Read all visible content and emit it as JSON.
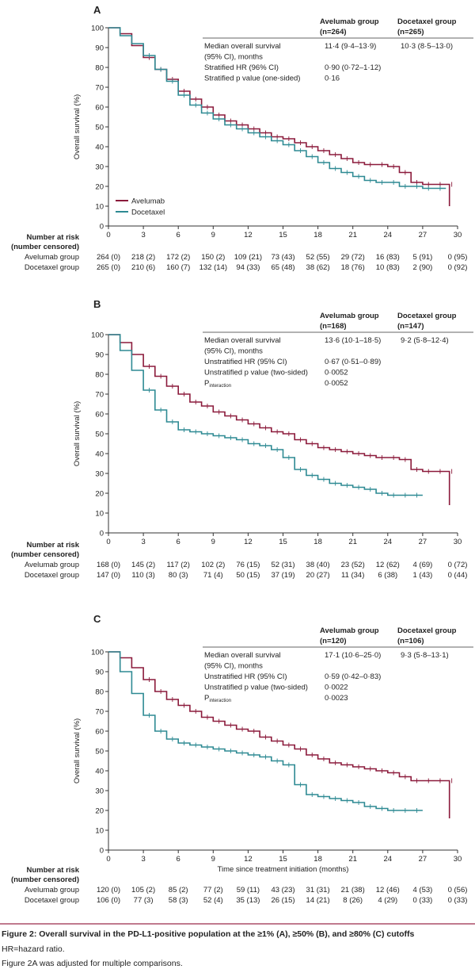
{
  "figure": {
    "caption": "Figure 2: Overall survival in the PD-L1-positive population at the ≥1% (A), ≥50% (B), and ≥80% (C) cutoffs",
    "note1": "HR=hazard ratio.",
    "note2": "Figure 2A was adjusted for multiple comparisons."
  },
  "chart_data": [
    {
      "type": "line",
      "panel": "A",
      "ylabel": "Overall survival (%)",
      "xlabel": "",
      "xlim": [
        0,
        30
      ],
      "ylim": [
        0,
        100
      ],
      "xticks": [
        0,
        3,
        6,
        9,
        12,
        15,
        18,
        21,
        24,
        27,
        30
      ],
      "yticks": [
        0,
        10,
        20,
        30,
        40,
        50,
        60,
        70,
        80,
        90,
        100
      ],
      "legend": [
        "Avelumab",
        "Docetaxel"
      ],
      "colors": {
        "avelumab": "#8b1a3b",
        "docetaxel": "#2e8a93"
      },
      "series": [
        {
          "name": "Avelumab",
          "x": [
            0,
            1,
            2,
            3,
            4,
            5,
            6,
            7,
            8,
            9,
            10,
            11,
            12,
            13,
            14,
            15,
            16,
            17,
            18,
            19,
            20,
            21,
            22,
            23,
            24,
            25,
            26,
            27,
            28,
            29,
            29.3
          ],
          "y": [
            100,
            97,
            91,
            85,
            79,
            74,
            68,
            64,
            60,
            56,
            53,
            51,
            49,
            47,
            45,
            44,
            42,
            40,
            38,
            36,
            34,
            32,
            31,
            31,
            30,
            27,
            22,
            21,
            21,
            21,
            10
          ]
        },
        {
          "name": "Docetaxel",
          "x": [
            0,
            1,
            2,
            3,
            4,
            5,
            6,
            7,
            8,
            9,
            10,
            11,
            12,
            13,
            14,
            15,
            16,
            17,
            18,
            19,
            20,
            21,
            22,
            23,
            24,
            25,
            26,
            27,
            28,
            29
          ],
          "y": [
            100,
            96,
            92,
            86,
            79,
            73,
            66,
            61,
            57,
            54,
            51,
            49,
            47,
            45,
            43,
            41,
            38,
            35,
            32,
            29,
            27,
            25,
            23,
            22,
            22,
            20,
            20,
            19,
            19,
            19
          ]
        }
      ],
      "table": {
        "header_col1": "Avelumab group",
        "header_col1b": "(n=264)",
        "header_col2": "Docetaxel group",
        "header_col2b": "(n=265)",
        "rows": [
          {
            "label": "Median overall survival",
            "av": "11·4 (9·4–13·9)",
            "dc": "10·3 (8·5–13·0)"
          },
          {
            "label": "(95% CI), months",
            "av": "",
            "dc": ""
          },
          {
            "label": "Stratified HR (96% CI)",
            "av": "0·90 (0·72–1·12)",
            "dc": ""
          },
          {
            "label": "Stratified p value (one-sided)",
            "av": "0·16",
            "dc": ""
          }
        ]
      },
      "risk": {
        "title1": "Number at risk",
        "title2": "(number censored)",
        "groups": [
          {
            "label": "Avelumab group",
            "values": [
              "264 (0)",
              "218 (2)",
              "172 (2)",
              "150 (2)",
              "109 (21)",
              "73 (43)",
              "52 (55)",
              "29 (72)",
              "16 (83)",
              "5 (91)",
              "0 (95)"
            ]
          },
          {
            "label": "Docetaxel group",
            "values": [
              "265 (0)",
              "210 (6)",
              "160 (7)",
              "132 (14)",
              "94 (33)",
              "65 (48)",
              "38 (62)",
              "18 (76)",
              "10 (83)",
              "2 (90)",
              "0 (92)"
            ]
          }
        ]
      }
    },
    {
      "type": "line",
      "panel": "B",
      "ylabel": "Overall survival (%)",
      "xlabel": "",
      "xlim": [
        0,
        30
      ],
      "ylim": [
        0,
        100
      ],
      "xticks": [
        0,
        3,
        6,
        9,
        12,
        15,
        18,
        21,
        24,
        27,
        30
      ],
      "yticks": [
        0,
        10,
        20,
        30,
        40,
        50,
        60,
        70,
        80,
        90,
        100
      ],
      "colors": {
        "avelumab": "#8b1a3b",
        "docetaxel": "#2e8a93"
      },
      "series": [
        {
          "name": "Avelumab",
          "x": [
            0,
            1,
            2,
            3,
            4,
            5,
            6,
            7,
            8,
            9,
            10,
            11,
            12,
            13,
            14,
            15,
            16,
            17,
            18,
            19,
            20,
            21,
            22,
            23,
            24,
            25,
            26,
            27,
            28,
            29,
            29.3
          ],
          "y": [
            100,
            96,
            90,
            84,
            79,
            74,
            70,
            66,
            64,
            61,
            59,
            57,
            55,
            53,
            51,
            50,
            47,
            45,
            43,
            42,
            41,
            40,
            39,
            38,
            38,
            37,
            32,
            31,
            31,
            31,
            14
          ]
        },
        {
          "name": "Docetaxel",
          "x": [
            0,
            1,
            2,
            3,
            4,
            5,
            6,
            7,
            8,
            9,
            10,
            11,
            12,
            13,
            14,
            15,
            16,
            17,
            18,
            19,
            20,
            21,
            22,
            23,
            24,
            25,
            26,
            27
          ],
          "y": [
            100,
            92,
            82,
            72,
            62,
            56,
            52,
            51,
            50,
            49,
            48,
            47,
            45,
            44,
            42,
            38,
            32,
            29,
            27,
            25,
            24,
            23,
            22,
            20,
            19,
            19,
            19,
            19
          ]
        }
      ],
      "table": {
        "header_col1": "Avelumab group",
        "header_col1b": "(n=168)",
        "header_col2": "Docetaxel group",
        "header_col2b": "(n=147)",
        "rows": [
          {
            "label": "Median overall survival",
            "av": "13·6 (10·1–18·5)",
            "dc": "9·2 (5·8–12·4)"
          },
          {
            "label": "(95% CI), months",
            "av": "",
            "dc": ""
          },
          {
            "label": "Unstratified HR (95% CI)",
            "av": "0·67 (0·51–0·89)",
            "dc": ""
          },
          {
            "label": "Unstratified p value (two-sided)",
            "av": "0·0052",
            "dc": ""
          },
          {
            "label": "P",
            "sub": "interaction",
            "av": "0·0052",
            "dc": ""
          }
        ]
      },
      "risk": {
        "title1": "Number at risk",
        "title2": "(number censored)",
        "groups": [
          {
            "label": "Avelumab group",
            "values": [
              "168 (0)",
              "145 (2)",
              "117 (2)",
              "102 (2)",
              "76 (15)",
              "52 (31)",
              "38 (40)",
              "23 (52)",
              "12 (62)",
              "4 (69)",
              "0 (72)"
            ]
          },
          {
            "label": "Docetaxel group",
            "values": [
              "147 (0)",
              "110 (3)",
              "80 (3)",
              "71 (4)",
              "50 (15)",
              "37 (19)",
              "20 (27)",
              "11 (34)",
              "6 (38)",
              "1 (43)",
              "0 (44)"
            ]
          }
        ]
      }
    },
    {
      "type": "line",
      "panel": "C",
      "ylabel": "Overall survival (%)",
      "xlabel": "Time since treatment initiation (months)",
      "xlim": [
        0,
        30
      ],
      "ylim": [
        0,
        100
      ],
      "xticks": [
        0,
        3,
        6,
        9,
        12,
        15,
        18,
        21,
        24,
        27,
        30
      ],
      "yticks": [
        0,
        10,
        20,
        30,
        40,
        50,
        60,
        70,
        80,
        90,
        100
      ],
      "colors": {
        "avelumab": "#8b1a3b",
        "docetaxel": "#2e8a93"
      },
      "series": [
        {
          "name": "Avelumab",
          "x": [
            0,
            1,
            2,
            3,
            4,
            5,
            6,
            7,
            8,
            9,
            10,
            11,
            12,
            13,
            14,
            15,
            16,
            17,
            18,
            19,
            20,
            21,
            22,
            23,
            24,
            25,
            26,
            27,
            28,
            29,
            29.3
          ],
          "y": [
            100,
            97,
            92,
            86,
            80,
            76,
            73,
            70,
            67,
            65,
            63,
            61,
            60,
            57,
            55,
            53,
            51,
            48,
            46,
            44,
            43,
            42,
            41,
            40,
            39,
            37,
            35,
            35,
            35,
            35,
            16
          ]
        },
        {
          "name": "Docetaxel",
          "x": [
            0,
            1,
            2,
            3,
            4,
            5,
            6,
            7,
            8,
            9,
            10,
            11,
            12,
            13,
            14,
            15,
            16,
            17,
            18,
            19,
            20,
            21,
            22,
            23,
            24,
            25,
            26,
            27
          ],
          "y": [
            100,
            90,
            79,
            68,
            60,
            56,
            54,
            53,
            52,
            51,
            50,
            49,
            48,
            47,
            45,
            43,
            33,
            28,
            27,
            26,
            25,
            24,
            22,
            21,
            20,
            20,
            20,
            20
          ]
        }
      ],
      "table": {
        "header_col1": "Avelumab group",
        "header_col1b": "(n=120)",
        "header_col2": "Docetaxel group",
        "header_col2b": "(n=106)",
        "rows": [
          {
            "label": "Median overall survival",
            "av": "17·1 (10·6–25·0)",
            "dc": "9·3 (5·8–13·1)"
          },
          {
            "label": "(95% CI), months",
            "av": "",
            "dc": ""
          },
          {
            "label": "Unstratified HR (95% CI)",
            "av": "0·59 (0·42–0·83)",
            "dc": ""
          },
          {
            "label": "Unstratified p value (two-sided)",
            "av": "0·0022",
            "dc": ""
          },
          {
            "label": "P",
            "sub": "interaction",
            "av": "0·0023",
            "dc": ""
          }
        ]
      },
      "risk": {
        "title1": "Number at risk",
        "title2": "(number censored)",
        "groups": [
          {
            "label": "Avelumab group",
            "values": [
              "120 (0)",
              "105 (2)",
              "85 (2)",
              "77 (2)",
              "59 (11)",
              "43 (23)",
              "31 (31)",
              "21 (38)",
              "12 (46)",
              "4 (53)",
              "0 (56)"
            ]
          },
          {
            "label": "Docetaxel group",
            "values": [
              "106 (0)",
              "77 (3)",
              "58 (3)",
              "52 (4)",
              "35 (13)",
              "26 (15)",
              "14 (21)",
              "8 (26)",
              "4 (29)",
              "0 (33)",
              "0 (33)"
            ]
          }
        ]
      }
    }
  ]
}
